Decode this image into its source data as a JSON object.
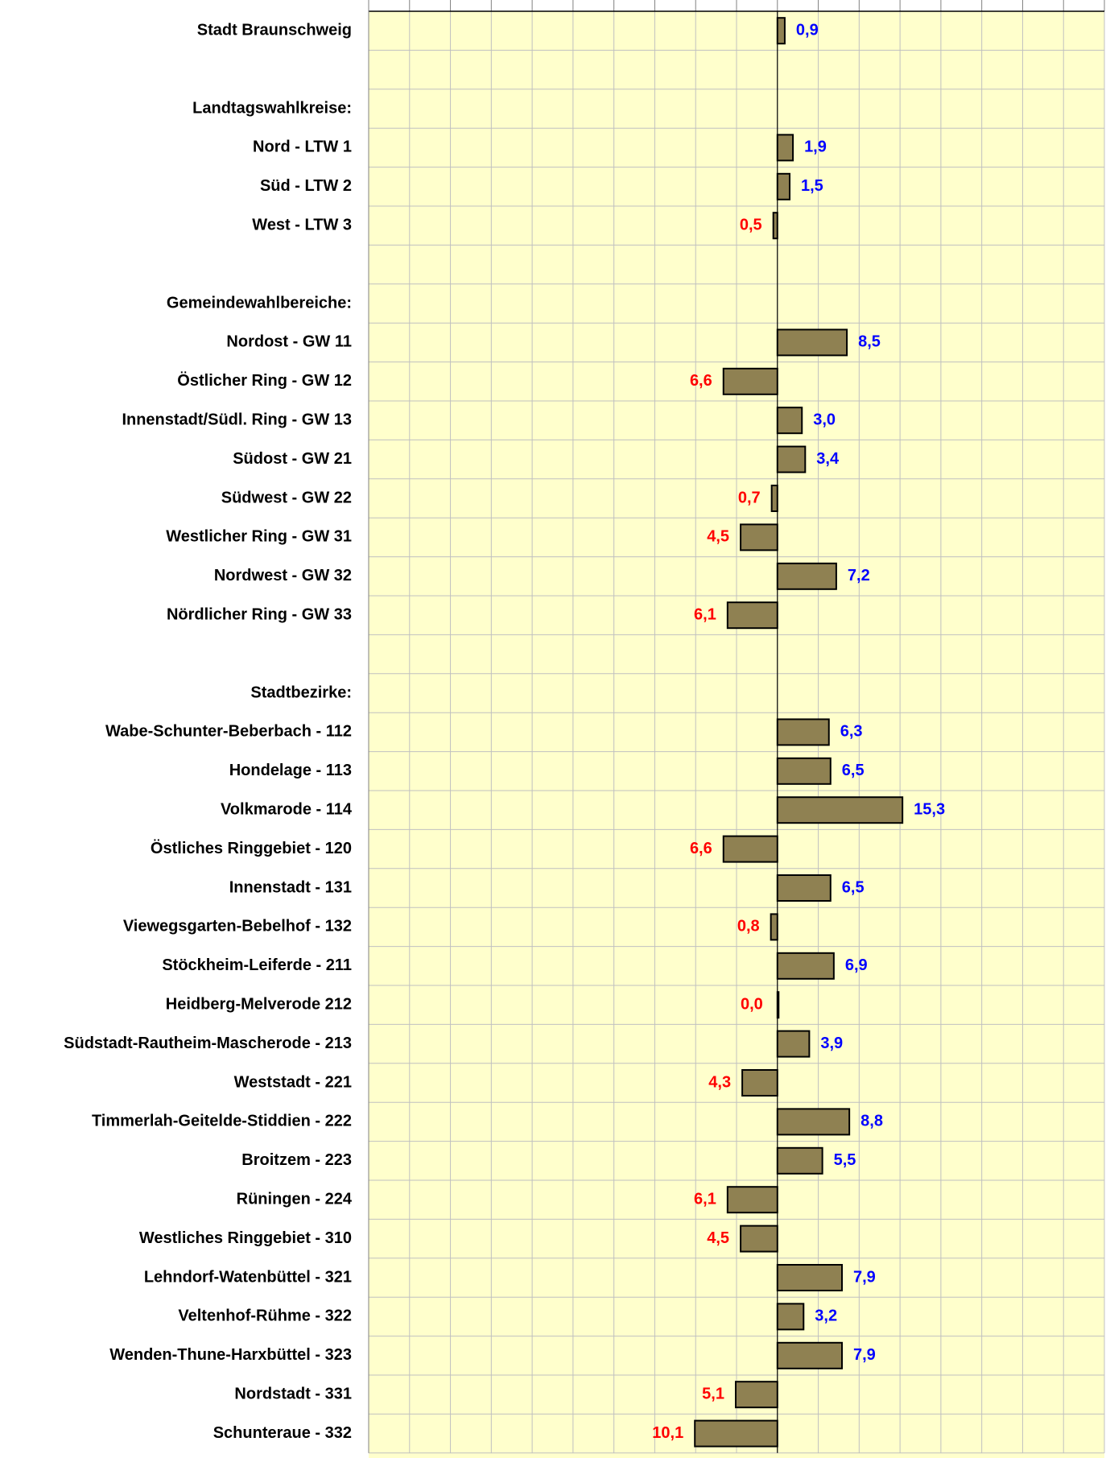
{
  "chart_data": {
    "type": "hbar",
    "categories": [
      "Stadt Braunschweig",
      null,
      "Landtagswahlkreise:",
      "Nord - LTW 1",
      "Süd - LTW 2",
      "West - LTW 3",
      null,
      "Gemeindewahlbereiche:",
      "Nordost - GW 11",
      "Östlicher Ring - GW 12",
      "Innenstadt/Südl. Ring - GW 13",
      "Südost - GW 21",
      "Südwest - GW 22",
      "Westlicher Ring - GW 31",
      "Nordwest - GW 32",
      "Nördlicher Ring - GW 33",
      null,
      "Stadtbezirke:",
      "Wabe-Schunter-Beberbach - 112",
      "Hondelage - 113",
      "Volkmarode - 114",
      "Östliches Ringgebiet - 120",
      "Innenstadt - 131",
      "Viewegsgarten-Bebelhof - 132",
      "Stöckheim-Leiferde - 211",
      "Heidberg-Melverode 212",
      "Südstadt-Rautheim-Mascherode - 213",
      "Weststadt - 221",
      "Timmerlah-Geitelde-Stiddien - 222",
      "Broitzem - 223",
      "Rüningen - 224",
      "Westliches Ringgebiet - 310",
      "Lehndorf-Watenbüttel - 321",
      "Veltenhof-Rühme - 322",
      "Wenden-Thune-Harxbüttel - 323",
      "Nordstadt - 331",
      "Schunteraue - 332"
    ],
    "values": [
      0.9,
      null,
      null,
      1.9,
      1.5,
      -0.5,
      null,
      null,
      8.5,
      -6.6,
      3.0,
      3.4,
      -0.7,
      -4.5,
      7.2,
      -6.1,
      null,
      null,
      6.3,
      6.5,
      15.3,
      -6.6,
      6.5,
      -0.8,
      6.9,
      0.0,
      3.9,
      -4.3,
      8.8,
      5.5,
      -6.1,
      -4.5,
      7.9,
      3.2,
      7.9,
      -5.1,
      -10.1
    ],
    "value_labels": [
      "0,9",
      null,
      null,
      "1,9",
      "1,5",
      "0,5",
      null,
      null,
      "8,5",
      "6,6",
      "3,0",
      "3,4",
      "0,7",
      "4,5",
      "7,2",
      "6,1",
      null,
      null,
      "6,3",
      "6,5",
      "15,3",
      "6,6",
      "6,5",
      "0,8",
      "6,9",
      "0,0",
      "3,9",
      "4,3",
      "8,8",
      "5,5",
      "6,1",
      "4,5",
      "7,9",
      "3,2",
      "7,9",
      "5,1",
      "10,1"
    ],
    "color": "#8f8152",
    "positive_color": "#0000ff",
    "negative_color": "#ff0000",
    "xlim": [
      -50,
      40
    ],
    "xticks": [
      -50,
      -45,
      -40,
      -35,
      -30,
      -25,
      -20,
      -15,
      -10,
      -5,
      0,
      5,
      10,
      15,
      20,
      25,
      30,
      35,
      40
    ],
    "grid": true
  }
}
